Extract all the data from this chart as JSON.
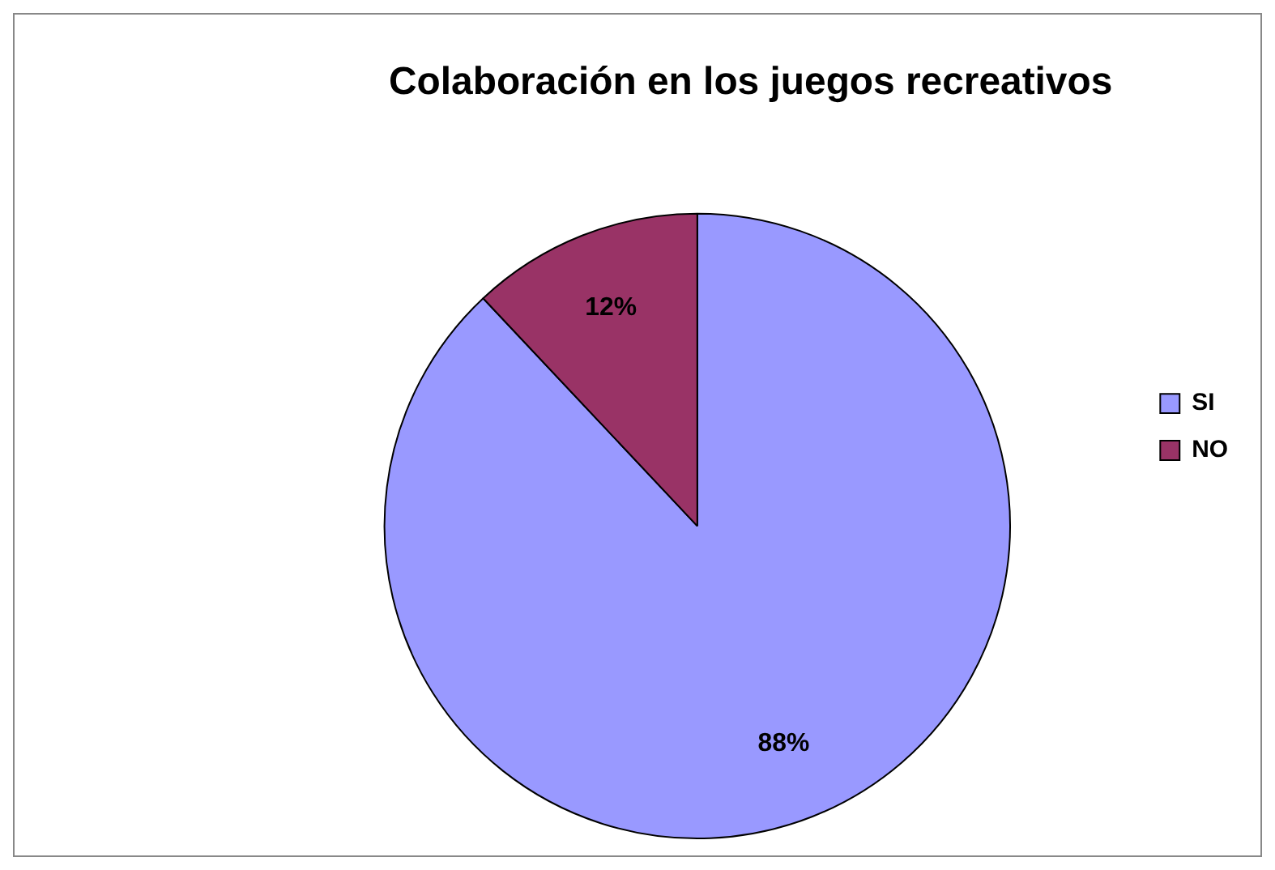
{
  "chart_data": {
    "type": "pie",
    "title": "Colaboración en los juegos recreativos",
    "categories": [
      "SI",
      "NO"
    ],
    "values": [
      88,
      12
    ],
    "colors": [
      "#9999ff",
      "#993366"
    ],
    "value_labels": [
      "88%",
      "12%"
    ],
    "legend": "right"
  }
}
